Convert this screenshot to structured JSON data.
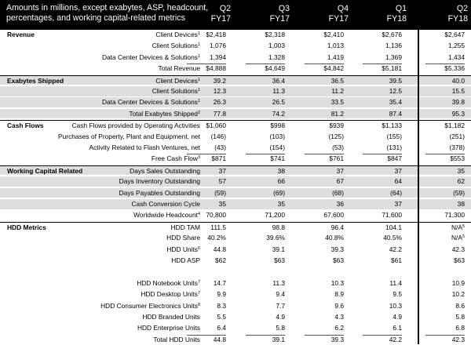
{
  "header": {
    "title": "Amounts in millions, except exabytes, ASP, headcount, percentages, and working capital-related metrics",
    "columns": [
      {
        "q": "Q2",
        "fy": "FY17"
      },
      {
        "q": "Q3",
        "fy": "FY17"
      },
      {
        "q": "Q4",
        "fy": "FY17"
      },
      {
        "q": "Q1",
        "fy": "FY18"
      },
      {
        "q": "Q2",
        "fy": "FY18"
      }
    ]
  },
  "rows": [
    {
      "section": "Revenue",
      "label": "Client Devices",
      "sup": "1",
      "values": [
        "$2,418",
        "$2,318",
        "$2,410",
        "$2,676",
        "$2,647"
      ],
      "shaded": false
    },
    {
      "section": "",
      "label": "Client Solutions",
      "sup": "1",
      "values": [
        "1,076",
        "1,003",
        "1,013",
        "1,136",
        "1,255"
      ],
      "shaded": false
    },
    {
      "section": "",
      "label": "Data Center Devices & Solutions",
      "sup": "1",
      "values": [
        "1,394",
        "1,328",
        "1,419",
        "1,369",
        "1,434"
      ],
      "shaded": false
    },
    {
      "section": "",
      "label": "Total Revenue",
      "sup": "",
      "values": [
        "$4,888",
        "$4,649",
        "$4,842",
        "$5,181",
        "$5,336"
      ],
      "shaded": false
    },
    {
      "section": "Exabytes Shipped",
      "label": "Client Devices",
      "sup": "1",
      "values": [
        "39.2",
        "36.4",
        "36.5",
        "39.5",
        "40.0"
      ],
      "shaded": true
    },
    {
      "section": "",
      "label": "Client Solutions",
      "sup": "1",
      "values": [
        "12.3",
        "11.3",
        "11.2",
        "12.5",
        "15.5"
      ],
      "shaded": true
    },
    {
      "section": "",
      "label": "Data Center Devices & Solutions",
      "sup": "1",
      "values": [
        "26.3",
        "26.5",
        "33.5",
        "35.4",
        "39.8"
      ],
      "shaded": true
    },
    {
      "section": "",
      "label": "Total Exabytes Shipped",
      "sup": "2",
      "values": [
        "77.8",
        "74.2",
        "81.2",
        "87.4",
        "95.3"
      ],
      "shaded": true
    },
    {
      "section": "Cash Flows",
      "label": "Cash Flows provided by Operating Activities",
      "sup": "",
      "values": [
        "$1,060",
        "$998",
        "$939",
        "$1,133",
        "$1,182"
      ],
      "shaded": false
    },
    {
      "section": "",
      "label": "Purchases of Property, Plant and Equipment, net",
      "sup": "",
      "values": [
        "(146)",
        "(103)",
        "(125)",
        "(155)",
        "(251)"
      ],
      "shaded": false
    },
    {
      "section": "",
      "label": "Activity Related to Flash Ventures, net",
      "sup": "",
      "values": [
        "(43)",
        "(154)",
        "(53)",
        "(131)",
        "(378)"
      ],
      "shaded": false
    },
    {
      "section": "",
      "label": "Free Cash Flow",
      "sup": "3",
      "values": [
        "$871",
        "$741",
        "$761",
        "$847",
        "$553"
      ],
      "shaded": false
    },
    {
      "section": "Working Capital Related",
      "label": "Days Sales Outstanding",
      "sup": "",
      "values": [
        "37",
        "38",
        "37",
        "37",
        "35"
      ],
      "shaded": true
    },
    {
      "section": "",
      "label": "Days Inventory Outstanding",
      "sup": "",
      "values": [
        "57",
        "66",
        "67",
        "64",
        "62"
      ],
      "shaded": true
    },
    {
      "section": "",
      "label": "Days Payables Outstanding",
      "sup": "",
      "values": [
        "(59)",
        "(69)",
        "(68)",
        "(64)",
        "(59)"
      ],
      "shaded": true
    },
    {
      "section": "",
      "label": "Cash Conversion Cycle",
      "sup": "",
      "values": [
        "35",
        "35",
        "36",
        "37",
        "38"
      ],
      "shaded": true
    },
    {
      "section": "",
      "label": "Worldwide Headcount",
      "sup": "4",
      "values": [
        "70,800",
        "71,200",
        "67,600",
        "71,600",
        "71,300"
      ],
      "shaded": false
    },
    {
      "section": "HDD Metrics",
      "label": "HDD TAM",
      "sup": "",
      "values": [
        "111.5",
        "98.8",
        "96.4",
        "104.1",
        "N/A"
      ],
      "sup5": "5",
      "shaded": false
    },
    {
      "section": "",
      "label": "HDD Share",
      "sup": "",
      "values": [
        "40.2%",
        "39.6%",
        "40.8%",
        "40.5%",
        "N/A"
      ],
      "sup5": "5",
      "shaded": false
    },
    {
      "section": "",
      "label": "HDD Units",
      "sup": "6",
      "values": [
        "44.8",
        "39.1",
        "39.3",
        "42.2",
        "42.3"
      ],
      "shaded": false
    },
    {
      "section": "",
      "label": "HDD ASP",
      "sup": "",
      "values": [
        "$62",
        "$63",
        "$63",
        "$61",
        "$63"
      ],
      "shaded": false
    },
    {
      "section": "",
      "label": "",
      "sup": "",
      "values": [
        "",
        "",
        "",
        "",
        ""
      ],
      "shaded": false
    },
    {
      "section": "",
      "label": "HDD Notebook Units",
      "sup": "7",
      "values": [
        "14.7",
        "11.3",
        "10.3",
        "11.4",
        "10.9"
      ],
      "shaded": false
    },
    {
      "section": "",
      "label": "HDD Desktop Units",
      "sup": "7",
      "values": [
        "9.9",
        "9.4",
        "8.9",
        "9.5",
        "10.2"
      ],
      "shaded": false
    },
    {
      "section": "",
      "label": "HDD Consumer Electronics Units",
      "sup": "8",
      "values": [
        "8.3",
        "7.7",
        "9.6",
        "10.3",
        "8.6"
      ],
      "shaded": false
    },
    {
      "section": "",
      "label": "HDD Branded Units",
      "sup": "",
      "values": [
        "5.5",
        "4.9",
        "4.3",
        "4.9",
        "5.8"
      ],
      "shaded": false
    },
    {
      "section": "",
      "label": "HDD Enterprise Units",
      "sup": "",
      "values": [
        "6.4",
        "5.8",
        "6.2",
        "6.1",
        "6.8"
      ],
      "shaded": false
    },
    {
      "section": "",
      "label": "Total HDD Units",
      "sup": "",
      "values": [
        "44.8",
        "39.1",
        "39.3",
        "42.2",
        "42.3"
      ],
      "shaded": false
    }
  ]
}
